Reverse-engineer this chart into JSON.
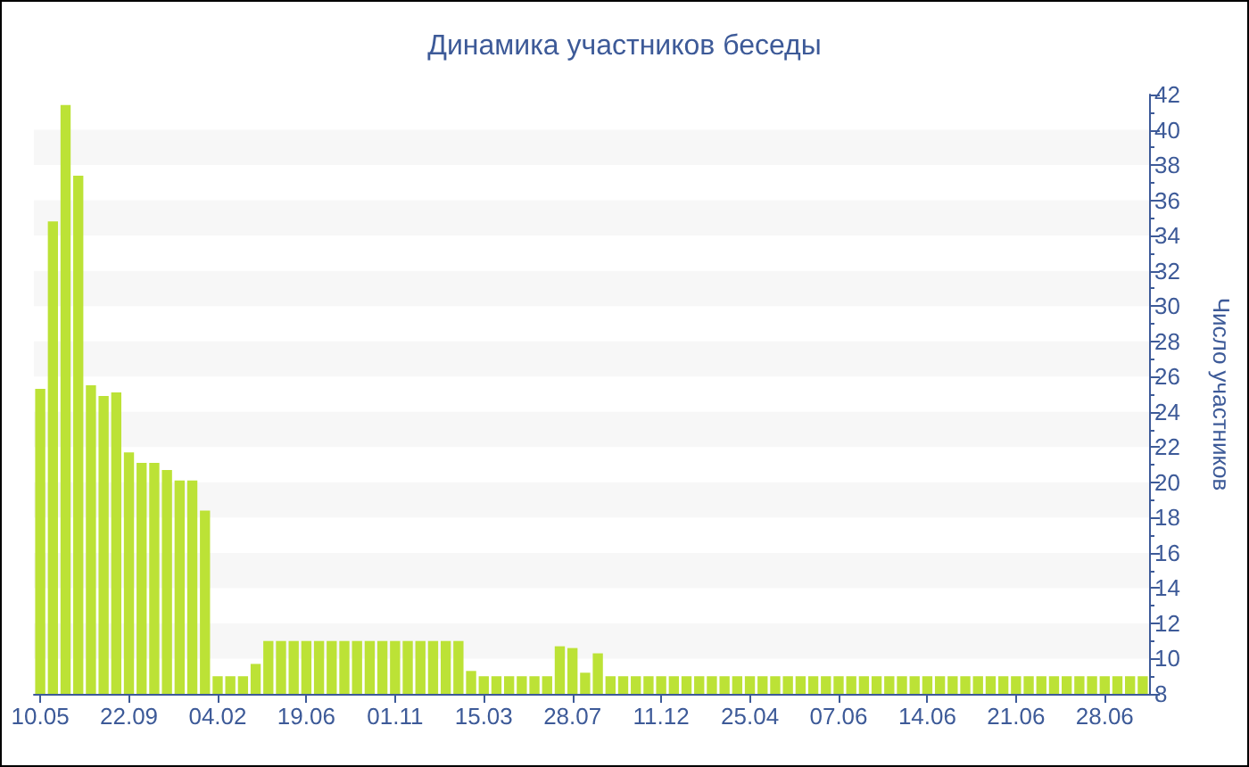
{
  "chart_data": {
    "type": "bar",
    "title": "Динамика участников беседы",
    "ylabel": "Число участников",
    "color": "#bce236",
    "categories": [
      "10.05",
      null,
      null,
      null,
      null,
      null,
      null,
      "22.09",
      null,
      null,
      null,
      null,
      null,
      null,
      "04.02",
      null,
      null,
      null,
      null,
      null,
      null,
      "19.06",
      null,
      null,
      null,
      null,
      null,
      null,
      "01.11",
      null,
      null,
      null,
      null,
      null,
      null,
      "15.03",
      null,
      null,
      null,
      null,
      null,
      null,
      "28.07",
      null,
      null,
      null,
      null,
      null,
      null,
      "11.12",
      null,
      null,
      null,
      null,
      null,
      null,
      "25.04",
      null,
      null,
      null,
      null,
      null,
      null,
      "07.06",
      null,
      null,
      null,
      null,
      null,
      null,
      "14.06",
      null,
      null,
      null,
      null,
      null,
      null,
      "21.06",
      null,
      null,
      null,
      null,
      null,
      null,
      "28.06",
      null,
      null,
      null
    ],
    "values": [
      25.3,
      34.8,
      41.4,
      37.4,
      25.5,
      24.9,
      25.1,
      21.7,
      21.1,
      21.1,
      20.7,
      20.1,
      20.1,
      18.4,
      9,
      9,
      9,
      9.7,
      11,
      11,
      11,
      11,
      11,
      11,
      11,
      11,
      11,
      11,
      11,
      11,
      11,
      11,
      11,
      11,
      9.3,
      9,
      9,
      9,
      9,
      9,
      9,
      10.7,
      10.6,
      9.2,
      10.3,
      9,
      9,
      9,
      9,
      9,
      9,
      9,
      9,
      9,
      9,
      9,
      9,
      9,
      9,
      9,
      9,
      9,
      9,
      9,
      9,
      9,
      9,
      9,
      9,
      9,
      9,
      9,
      9,
      9,
      9,
      9,
      9,
      9,
      9,
      9,
      9,
      9,
      9,
      9,
      9,
      9,
      9,
      9
    ],
    "ylim": [
      8,
      42
    ],
    "yticks": [
      8,
      {
        "value": 9,
        "label": null
      },
      10,
      {
        "value": 11,
        "label": null
      },
      12,
      {
        "value": 13,
        "label": null
      },
      14,
      {
        "value": 15,
        "label": null
      },
      16,
      {
        "value": 17,
        "label": null
      },
      18,
      {
        "value": 19,
        "label": null
      },
      20,
      {
        "value": 21,
        "label": null
      },
      22,
      {
        "value": 23,
        "label": null
      },
      24,
      {
        "value": 25,
        "label": null
      },
      26,
      {
        "value": 27,
        "label": null
      },
      28,
      {
        "value": 29,
        "label": null
      },
      30,
      {
        "value": 31,
        "label": null
      },
      32,
      {
        "value": 33,
        "label": null
      },
      34,
      {
        "value": 35,
        "label": null
      },
      36,
      {
        "value": 37,
        "label": null
      },
      38,
      {
        "value": 39,
        "label": null
      },
      40,
      {
        "value": 41,
        "label": null
      },
      42
    ],
    "bands": [
      {
        "axis": "y",
        "from": 10,
        "to": 12,
        "color": "#f7f7f7"
      },
      {
        "axis": "y",
        "from": 14,
        "to": 16,
        "color": "#f7f7f7"
      },
      {
        "axis": "y",
        "from": 18,
        "to": 20,
        "color": "#f7f7f7"
      },
      {
        "axis": "y",
        "from": 22,
        "to": 24,
        "color": "#f7f7f7"
      },
      {
        "axis": "y",
        "from": 26,
        "to": 28,
        "color": "#f7f7f7"
      },
      {
        "axis": "y",
        "from": 30,
        "to": 32,
        "color": "#f7f7f7"
      },
      {
        "axis": "y",
        "from": 34,
        "to": 36,
        "color": "#f7f7f7"
      },
      {
        "axis": "y",
        "from": 38,
        "to": 40,
        "color": "#f7f7f7"
      }
    ]
  }
}
